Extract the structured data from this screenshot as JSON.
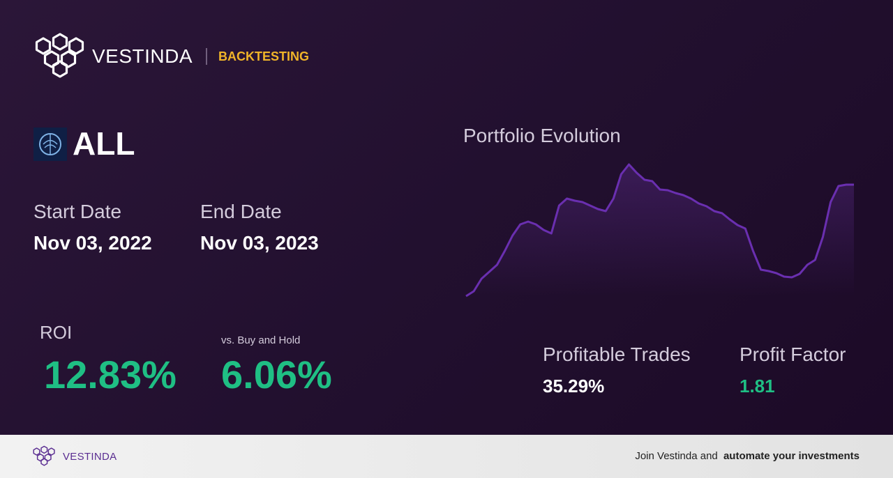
{
  "header": {
    "brand": "VESTINDA",
    "section": "BACKTESTING"
  },
  "ticker": "ALL",
  "dates": {
    "start_label": "Start Date",
    "start": "Nov 03, 2022",
    "end_label": "End Date",
    "end": "Nov 03, 2023"
  },
  "roi": {
    "label": "ROI",
    "value": "12.83%",
    "compare_label": "vs. Buy and Hold",
    "compare_value": "6.06%"
  },
  "chart_data": {
    "type": "line",
    "title": "Portfolio Evolution",
    "color": "#6a2fb0",
    "values": [
      5,
      12,
      30,
      40,
      50,
      70,
      92,
      108,
      112,
      108,
      100,
      95,
      135,
      145,
      142,
      140,
      135,
      130,
      127,
      145,
      180,
      194,
      182,
      172,
      170,
      158,
      157,
      153,
      150,
      145,
      138,
      134,
      127,
      124,
      115,
      107,
      102,
      70,
      43,
      41,
      38,
      33,
      32,
      37,
      50,
      57,
      90,
      140,
      163,
      165,
      165
    ]
  },
  "stats": [
    {
      "label": "Profitable Trades",
      "value": "35.29%"
    },
    {
      "label": "Profit Factor",
      "value": "1.81"
    }
  ],
  "footer": {
    "brand": "VESTINDA",
    "text": "Join Vestinda and",
    "emphasis": "automate your investments"
  }
}
